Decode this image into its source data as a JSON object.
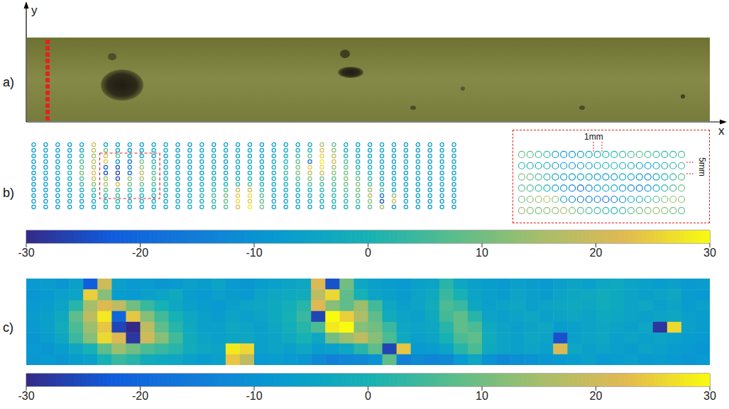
{
  "chart_data": [
    {
      "type": "image",
      "panel": "a)",
      "xlabel": "x",
      "ylabel": "y"
    },
    {
      "type": "scatter",
      "panel": "b)",
      "tick_labels": false,
      "marker": "circle",
      "lines": [
        [
          -8,
          -7,
          -9,
          -8,
          -6,
          20,
          -7,
          -8,
          -9,
          -8,
          -7,
          -6,
          -8,
          -9,
          -7,
          -8,
          -6,
          -7,
          -8,
          -9,
          -7,
          -6,
          -5,
          -4,
          15,
          8,
          -5,
          -7,
          -8,
          -6,
          -7,
          -8,
          -9,
          -7,
          -8,
          -6
        ],
        [
          -7,
          -8,
          -6,
          -9,
          -5,
          18,
          10,
          -6,
          -8,
          -7,
          -6,
          -5,
          -7,
          -8,
          -6,
          -7,
          -5,
          -6,
          -7,
          -8,
          -6,
          -4,
          -2,
          0,
          22,
          12,
          -3,
          -6,
          -7,
          -5,
          -6,
          -8,
          -7,
          -9,
          -8,
          -7
        ],
        [
          -8,
          -6,
          -7,
          -5,
          2,
          14,
          22,
          8,
          -4,
          -6,
          -7,
          -8,
          -6,
          -5,
          -7,
          -6,
          -4,
          -5,
          -6,
          -7,
          -5,
          -2,
          4,
          10,
          25,
          18,
          2,
          -4,
          -6,
          -7,
          -5,
          -6,
          -8,
          -7,
          -6,
          -8
        ],
        [
          -7,
          -8,
          -6,
          -4,
          6,
          18,
          24,
          -10,
          -18,
          10,
          2,
          -5,
          -7,
          -6,
          -5,
          -6,
          -7,
          -5,
          -4,
          -6,
          -4,
          0,
          8,
          -20,
          28,
          20,
          6,
          -2,
          -5,
          -6,
          -7,
          -5,
          -6,
          -8,
          -7,
          -6
        ],
        [
          -8,
          -7,
          -5,
          -2,
          8,
          16,
          -22,
          -26,
          -14,
          14,
          4,
          -4,
          -6,
          -7,
          -6,
          -5,
          -6,
          -4,
          -3,
          -5,
          -3,
          2,
          12,
          24,
          26,
          14,
          8,
          0,
          -4,
          -5,
          -6,
          -5,
          -7,
          -8,
          -6,
          -7
        ],
        [
          -7,
          -6,
          -5,
          0,
          10,
          22,
          -24,
          -28,
          -20,
          18,
          6,
          -3,
          -5,
          -6,
          -7,
          -5,
          -4,
          -6,
          -5,
          -4,
          -2,
          4,
          10,
          16,
          20,
          12,
          10,
          4,
          -2,
          -5,
          -6,
          -7,
          -5,
          -6,
          -8,
          -7
        ],
        [
          -8,
          -7,
          -6,
          -2,
          6,
          20,
          14,
          -26,
          12,
          16,
          8,
          0,
          -4,
          -6,
          -5,
          -4,
          -3,
          -2,
          0,
          -4,
          -3,
          0,
          6,
          12,
          10,
          8,
          12,
          8,
          2,
          -4,
          -5,
          -6,
          -7,
          -8,
          -6,
          -7
        ],
        [
          -9,
          -8,
          -7,
          -4,
          2,
          12,
          18,
          22,
          10,
          8,
          4,
          2,
          -2,
          -5,
          -4,
          -2,
          0,
          4,
          6,
          -2,
          -4,
          -2,
          2,
          6,
          4,
          6,
          10,
          12,
          6,
          -2,
          -5,
          -6,
          -8,
          -7,
          -6,
          -8
        ],
        [
          -8,
          -9,
          -7,
          -6,
          -3,
          4,
          8,
          6,
          4,
          2,
          0,
          -2,
          -4,
          -5,
          -2,
          2,
          6,
          18,
          20,
          4,
          -5,
          -4,
          -2,
          0,
          2,
          4,
          6,
          10,
          14,
          6,
          -4,
          -6,
          -7,
          -8,
          -7,
          -9
        ],
        [
          -9,
          -8,
          -7,
          -6,
          -5,
          -2,
          2,
          4,
          0,
          -2,
          -3,
          -4,
          -5,
          -4,
          0,
          4,
          10,
          24,
          26,
          6,
          -4,
          -5,
          -4,
          -2,
          0,
          2,
          4,
          8,
          16,
          -18,
          12,
          -6,
          -8,
          -7,
          -8,
          -9
        ],
        [
          -8,
          -9,
          -8,
          -7,
          -6,
          -5,
          -2,
          0,
          -3,
          -4,
          -5,
          -6,
          -5,
          -4,
          -2,
          2,
          8,
          26,
          24,
          8,
          -5,
          -6,
          -5,
          -4,
          -2,
          0,
          2,
          6,
          12,
          -24,
          20,
          -4,
          -7,
          -8,
          -9,
          -8
        ],
        [
          -9,
          -8,
          -9,
          -8,
          -7,
          -6,
          -5,
          -4,
          -5,
          -6,
          -7,
          -6,
          -5,
          -4,
          -3,
          0,
          6,
          22,
          28,
          10,
          -6,
          -7,
          -6,
          -5,
          -4,
          -3,
          -2,
          0,
          8,
          14,
          -10,
          -6,
          -8,
          -9,
          -8,
          -9
        ]
      ],
      "inset": {
        "annotations": [
          "1mm",
          "5mm"
        ],
        "lines": [
          [
            10,
            8,
            6,
            4,
            -4,
            -8,
            -10,
            -6,
            -4,
            -2,
            0,
            2,
            4,
            6,
            8,
            6,
            4,
            2,
            4,
            6
          ],
          [
            2,
            0,
            -2,
            -4,
            -6,
            -8,
            -10,
            -8,
            -6,
            -4,
            -2,
            0,
            -2,
            -4,
            -6,
            -8,
            -4,
            0,
            2,
            4
          ],
          [
            12,
            10,
            6,
            2,
            -4,
            -6,
            -8,
            -6,
            -4,
            -8,
            -10,
            -6,
            -2,
            -4,
            -8,
            -12,
            -6,
            0,
            4,
            8
          ],
          [
            8,
            6,
            4,
            0,
            -6,
            -10,
            -14,
            -20,
            -12,
            -6,
            -2,
            -4,
            -8,
            -12,
            -16,
            -10,
            -4,
            2,
            6,
            10
          ],
          [
            10,
            12,
            14,
            16,
            12,
            -8,
            -12,
            -16,
            -18,
            -14,
            -20,
            -16,
            -10,
            -4,
            0,
            4,
            8,
            12,
            14,
            12
          ],
          [
            14,
            12,
            10,
            12,
            14,
            16,
            12,
            8,
            6,
            4,
            2,
            0,
            4,
            8,
            10,
            12,
            14,
            12,
            10,
            8
          ]
        ]
      },
      "colorbar": {
        "range": [
          -30,
          30
        ],
        "ticks": [
          -30,
          -20,
          -10,
          0,
          10,
          20,
          30
        ]
      }
    },
    {
      "type": "heatmap",
      "panel": "c)",
      "tick_labels": false,
      "cells": [
        [
          -8,
          -7,
          -9,
          -6,
          -22,
          20,
          -6,
          -8,
          -7,
          -9,
          -8,
          -6,
          -7,
          -5,
          -8,
          -9,
          -7,
          -6,
          -5,
          -4,
          22,
          -24,
          10,
          -4,
          -6,
          -7,
          -8,
          -6,
          -5,
          2,
          -4,
          -6,
          -7,
          -8,
          -6,
          -7,
          -8,
          -6,
          -5,
          -6,
          -4,
          -3,
          -5,
          -6,
          -7,
          -6,
          -8,
          -7
        ],
        [
          -9,
          -8,
          -6,
          -5,
          25,
          12,
          -7,
          -8,
          -6,
          -5,
          -3,
          -7,
          -8,
          -6,
          -7,
          -8,
          -5,
          -4,
          -3,
          -2,
          18,
          26,
          8,
          0,
          -5,
          -6,
          -7,
          -5,
          -3,
          4,
          0,
          -5,
          -6,
          -7,
          -5,
          -6,
          -7,
          -5,
          -4,
          -3,
          -2,
          -3,
          -5,
          -6,
          -5,
          -4,
          -7,
          -8
        ],
        [
          -8,
          -7,
          -5,
          2,
          15,
          22,
          18,
          10,
          4,
          0,
          -4,
          -6,
          -7,
          -8,
          -6,
          -5,
          -4,
          -3,
          -1,
          2,
          22,
          12,
          8,
          14,
          5,
          -4,
          -6,
          -5,
          -2,
          6,
          4,
          -4,
          -6,
          -5,
          -4,
          -6,
          -5,
          -4,
          -3,
          -4,
          -2,
          -3,
          -5,
          -4,
          -6,
          -5,
          -7,
          -6
        ],
        [
          -7,
          -6,
          -3,
          8,
          18,
          28,
          -20,
          24,
          12,
          5,
          0,
          -4,
          -6,
          -7,
          -5,
          -6,
          -5,
          -3,
          0,
          4,
          -26,
          30,
          25,
          16,
          8,
          -2,
          -5,
          -6,
          -3,
          5,
          8,
          2,
          -5,
          -6,
          -5,
          -4,
          -6,
          -5,
          -4,
          -5,
          -3,
          -4,
          -5,
          -6,
          -5,
          -4,
          -6,
          -7
        ],
        [
          -8,
          -6,
          -2,
          6,
          14,
          24,
          -26,
          -30,
          18,
          8,
          2,
          -3,
          -6,
          -6,
          -4,
          -5,
          -6,
          -4,
          -1,
          2,
          6,
          28,
          30,
          12,
          10,
          4,
          -4,
          -5,
          -4,
          2,
          8,
          6,
          -3,
          -5,
          -6,
          -5,
          -4,
          -7,
          -6,
          -5,
          -4,
          -5,
          -6,
          -4,
          -28,
          26,
          -6,
          -7
        ],
        [
          -9,
          -7,
          -4,
          4,
          12,
          26,
          22,
          -28,
          20,
          12,
          5,
          -2,
          -5,
          -6,
          -5,
          -4,
          -6,
          -5,
          -3,
          0,
          -4,
          10,
          14,
          18,
          12,
          6,
          -3,
          -6,
          -5,
          0,
          6,
          8,
          -2,
          -5,
          -6,
          -4,
          -5,
          -24,
          -6,
          -5,
          -4,
          -6,
          -5,
          -6,
          -5,
          -6,
          -7,
          -8
        ],
        [
          -8,
          -9,
          -7,
          -4,
          0,
          8,
          14,
          10,
          6,
          4,
          2,
          -2,
          -4,
          -5,
          28,
          26,
          -6,
          -5,
          -6,
          -4,
          -7,
          -6,
          -4,
          2,
          8,
          -26,
          24,
          -8,
          -7,
          -5,
          2,
          6,
          -3,
          -5,
          -6,
          -5,
          -6,
          22,
          -4,
          -6,
          -5,
          -6,
          -7,
          -5,
          -6,
          -7,
          -8,
          -9
        ],
        [
          -9,
          -8,
          -9,
          -7,
          -6,
          0,
          4,
          2,
          -2,
          -3,
          -4,
          -6,
          -7,
          -6,
          24,
          18,
          -8,
          -7,
          -8,
          -9,
          -12,
          -14,
          -13,
          -12,
          -10,
          8,
          -14,
          -12,
          -13,
          -12,
          -8,
          -4,
          -10,
          -12,
          -11,
          -10,
          -9,
          -8,
          -7,
          -6,
          -8,
          -7,
          -6,
          -8,
          -7,
          -8,
          -9,
          -8
        ]
      ],
      "colorbar": {
        "range": [
          -30,
          30
        ],
        "ticks": [
          -30,
          -20,
          -10,
          0,
          10,
          20,
          30
        ]
      }
    }
  ]
}
